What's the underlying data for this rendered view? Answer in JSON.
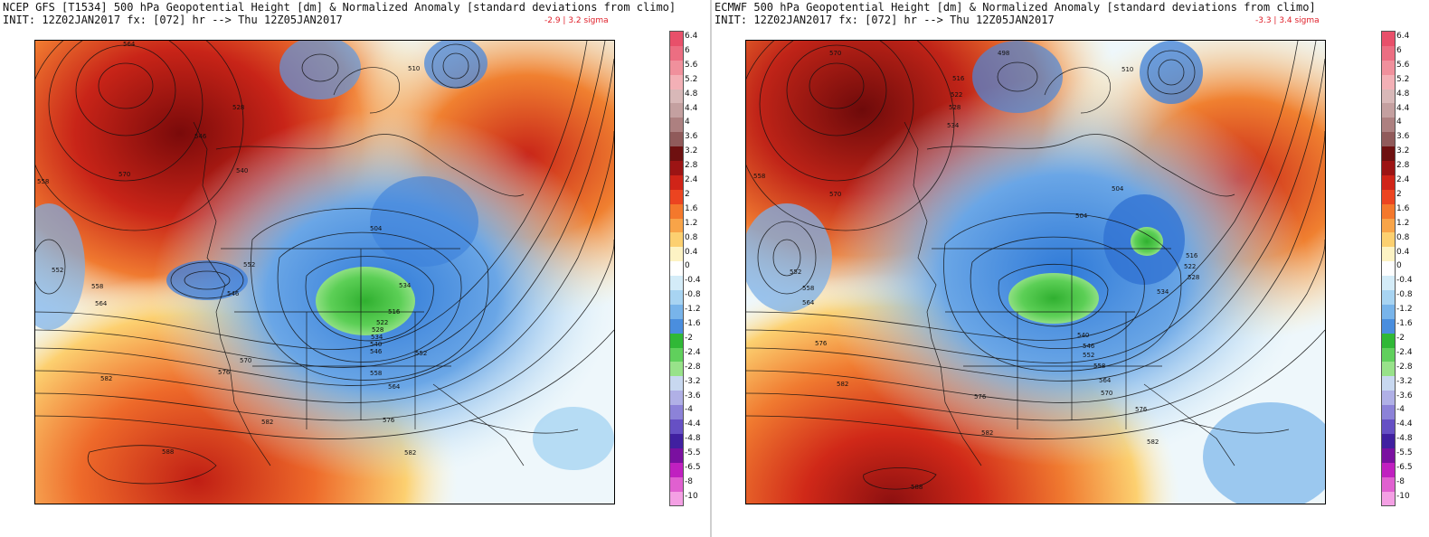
{
  "panels": [
    {
      "id": "gfs",
      "title": "NCEP GFS [T1534] 500 hPa Geopotential Height [dm] & Normalized Anomaly [standard deviations from climo]",
      "init": "INIT: 12Z02JAN2017 fx: [072] hr --> Thu 12Z05JAN2017",
      "sigma": "-2.9 | 3.2 sigma",
      "contour_labels": [
        "564",
        "570",
        "558",
        "552",
        "546",
        "540",
        "558",
        "564",
        "552",
        "546",
        "528",
        "504",
        "510",
        "534",
        "516",
        "522",
        "528",
        "534",
        "540",
        "546",
        "552",
        "558",
        "564",
        "570",
        "576",
        "582",
        "582",
        "588",
        "582",
        "576"
      ]
    },
    {
      "id": "ecmwf",
      "title": "ECMWF 500 hPa Geopotential Height [dm] & Normalized Anomaly [standard deviations from climo]",
      "init": "INIT: 12Z02JAN2017 fx: [072] hr --> Thu 12Z05JAN2017",
      "sigma": "-3.3 | 3.4 sigma",
      "contour_labels": [
        "570",
        "570",
        "558",
        "552",
        "558",
        "564",
        "576",
        "498",
        "510",
        "516",
        "522",
        "528",
        "534",
        "504",
        "504",
        "516",
        "522",
        "528",
        "534",
        "540",
        "546",
        "552",
        "558",
        "564",
        "570",
        "576",
        "582",
        "582",
        "588",
        "576",
        "582"
      ]
    }
  ],
  "colorbar": {
    "labels": [
      "6.4",
      "6",
      "5.6",
      "5.2",
      "4.8",
      "4.4",
      "4",
      "3.6",
      "3.2",
      "2.8",
      "2.4",
      "2",
      "1.6",
      "1.2",
      "0.8",
      "0.4",
      "0",
      "-0.4",
      "-0.8",
      "-1.2",
      "-1.6",
      "-2",
      "-2.4",
      "-2.8",
      "-3.2",
      "-3.6",
      "-4",
      "-4.4",
      "-4.8",
      "-5.5",
      "-6.5",
      "-8",
      "-10"
    ],
    "colors": [
      "#e8506a",
      "#ec6e82",
      "#f0909c",
      "#f3b0b6",
      "#d8b8b8",
      "#c4a0a0",
      "#ad8080",
      "#905a5a",
      "#6e1010",
      "#9c1414",
      "#d02418",
      "#ec4420",
      "#f4782c",
      "#f8a448",
      "#fcd070",
      "#fdf3c4",
      "#ffffff",
      "#d4ecf8",
      "#a8d4f2",
      "#78b4ea",
      "#4a8ede",
      "#30b836",
      "#60d05c",
      "#98e28a",
      "#c8d8f0",
      "#b0b0e6",
      "#8c82d8",
      "#6650c4",
      "#4020a0",
      "#7a10a0",
      "#c020c0",
      "#e060d0",
      "#f4a0e4"
    ]
  },
  "ui": {
    "font_note": ""
  }
}
